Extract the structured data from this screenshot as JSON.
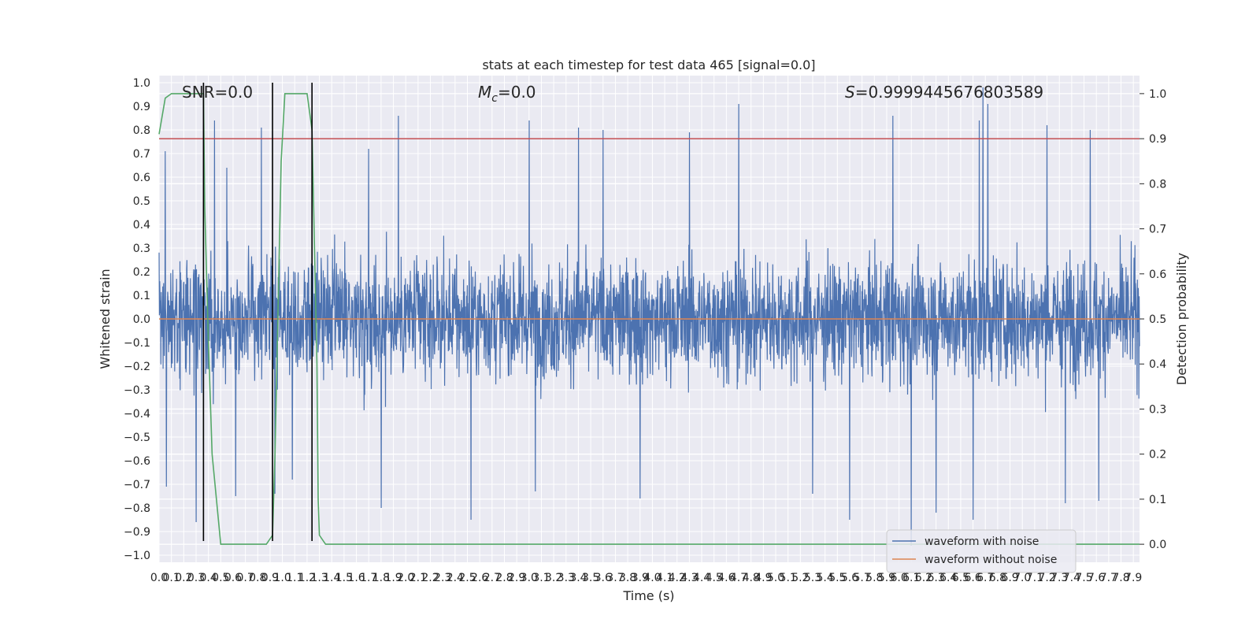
{
  "chart_data": {
    "type": "line",
    "title": "stats at each timestep for test data 465 [signal=0.0]",
    "xlabel": "Time (s)",
    "ylabel": "Whitened strain",
    "y2label": "Detection probability",
    "xlim": [
      0.0,
      7.95
    ],
    "ylim": [
      -1.03,
      1.03
    ],
    "y2lim": [
      -0.04,
      1.04
    ],
    "x_ticks": [
      0.0,
      0.1,
      0.2,
      0.3,
      0.4,
      0.5,
      0.6,
      0.7,
      0.8,
      0.9,
      1.0,
      1.1,
      1.2,
      1.3,
      1.4,
      1.5,
      1.6,
      1.7,
      1.8,
      1.9,
      2.0,
      2.1,
      2.2,
      2.3,
      2.4,
      2.5,
      2.6,
      2.7,
      2.8,
      2.9,
      3.0,
      3.1,
      3.2,
      3.3,
      3.4,
      3.5,
      3.6,
      3.7,
      3.8,
      3.9,
      4.0,
      4.1,
      4.2,
      4.3,
      4.4,
      4.5,
      4.6,
      4.7,
      4.8,
      4.9,
      5.0,
      5.1,
      5.2,
      5.3,
      5.4,
      5.5,
      5.6,
      5.7,
      5.8,
      5.9,
      6.0,
      6.1,
      6.2,
      6.3,
      6.4,
      6.5,
      6.6,
      6.7,
      6.8,
      6.9,
      7.0,
      7.1,
      7.2,
      7.3,
      7.4,
      7.5,
      7.6,
      7.7,
      7.8,
      7.9
    ],
    "y_ticks": [
      -1.0,
      -0.9,
      -0.8,
      -0.7,
      -0.6,
      -0.5,
      -0.4,
      -0.3,
      -0.2,
      -0.1,
      0.0,
      0.1,
      0.2,
      0.3,
      0.4,
      0.5,
      0.6,
      0.7,
      0.8,
      0.9,
      1.0
    ],
    "y_tick_labels": [
      "−1.0",
      "−0.9",
      "−0.8",
      "−0.7",
      "−0.6",
      "−0.5",
      "−0.4",
      "−0.3",
      "−0.2",
      "−0.1",
      "0.0",
      "0.1",
      "0.2",
      "0.3",
      "0.4",
      "0.5",
      "0.6",
      "0.7",
      "0.8",
      "0.9",
      "1.0"
    ],
    "y2_ticks": [
      0.0,
      0.1,
      0.2,
      0.3,
      0.4,
      0.5,
      0.6,
      0.7,
      0.8,
      0.9,
      1.0
    ],
    "grid": true,
    "legend_position": "lower-right",
    "annotations": {
      "snr": "SNR=0.0",
      "mc_symbol": "M",
      "mc_sub": "c",
      "mc_value": "=0.0",
      "s_symbol": "S",
      "s_value": "=0.9999445676803589"
    },
    "series": [
      {
        "name": "waveform with noise",
        "color": "#4c72b0",
        "axis": "left",
        "description_values": "dense noise, x from 0.0 to 7.95, amplitude mostly within ±0.5, peaks near 0.98 at x≈6.7 and −0.96 at x≈6.1",
        "spikes": [
          {
            "x": 0.05,
            "y": 0.71
          },
          {
            "x": 0.06,
            "y": -0.71
          },
          {
            "x": 0.3,
            "y": -0.86
          },
          {
            "x": 0.45,
            "y": 0.84
          },
          {
            "x": 0.55,
            "y": 0.64
          },
          {
            "x": 0.62,
            "y": -0.75
          },
          {
            "x": 0.83,
            "y": 0.81
          },
          {
            "x": 0.94,
            "y": -0.74
          },
          {
            "x": 1.08,
            "y": -0.68
          },
          {
            "x": 1.7,
            "y": 0.72
          },
          {
            "x": 1.8,
            "y": -0.8
          },
          {
            "x": 1.94,
            "y": 0.86
          },
          {
            "x": 2.53,
            "y": -0.85
          },
          {
            "x": 3.0,
            "y": 0.84
          },
          {
            "x": 3.05,
            "y": -0.73
          },
          {
            "x": 3.4,
            "y": 0.81
          },
          {
            "x": 3.6,
            "y": 0.8
          },
          {
            "x": 3.9,
            "y": -0.76
          },
          {
            "x": 4.3,
            "y": 0.79
          },
          {
            "x": 4.7,
            "y": 0.91
          },
          {
            "x": 5.3,
            "y": -0.74
          },
          {
            "x": 5.6,
            "y": -0.85
          },
          {
            "x": 5.95,
            "y": 0.86
          },
          {
            "x": 6.1,
            "y": -0.96
          },
          {
            "x": 6.3,
            "y": -0.82
          },
          {
            "x": 6.6,
            "y": -0.85
          },
          {
            "x": 6.65,
            "y": 0.84
          },
          {
            "x": 6.68,
            "y": 0.98
          },
          {
            "x": 6.72,
            "y": 0.91
          },
          {
            "x": 7.2,
            "y": 0.82
          },
          {
            "x": 7.35,
            "y": -0.78
          },
          {
            "x": 7.55,
            "y": 0.8
          },
          {
            "x": 7.62,
            "y": -0.77
          }
        ]
      },
      {
        "name": "waveform without noise",
        "color": "#dd8452",
        "axis": "left",
        "x": [
          0.0,
          7.95
        ],
        "y": [
          0.0,
          0.0
        ]
      },
      {
        "name": "",
        "color": "#55a868",
        "axis": "right",
        "x": [
          0.0,
          0.05,
          0.1,
          0.2,
          0.36,
          0.37,
          0.4,
          0.43,
          0.5,
          0.7,
          0.87,
          0.92,
          0.94,
          0.99,
          1.02,
          1.2,
          1.24,
          1.28,
          1.29,
          1.3,
          1.35,
          7.95
        ],
        "y": [
          0.91,
          0.99,
          1.0,
          1.0,
          1.0,
          0.75,
          0.45,
          0.2,
          0.0,
          0.0,
          0.0,
          0.02,
          0.2,
          0.85,
          1.0,
          1.0,
          0.92,
          0.4,
          0.1,
          0.02,
          0.0,
          0.0
        ]
      }
    ],
    "threshold_line": {
      "color": "#c44e52",
      "axis": "right",
      "y": 0.9
    },
    "vertical_lines": {
      "color": "#000000",
      "x": [
        0.36,
        0.92,
        1.24
      ],
      "y_top": 1.0,
      "y_bottom": -0.94
    }
  }
}
